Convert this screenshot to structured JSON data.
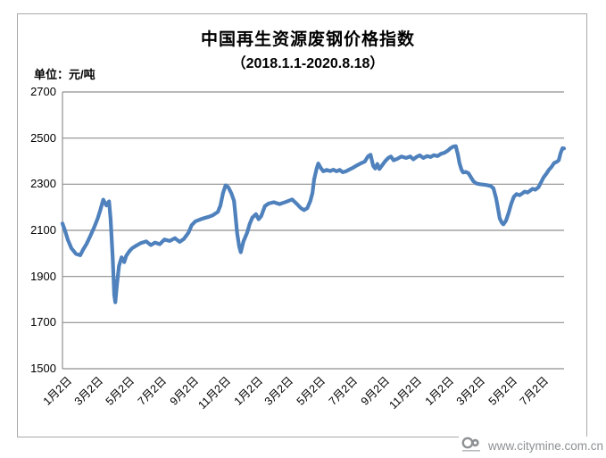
{
  "header": {
    "title": "中国再生资源废钢价格指数",
    "subtitle": "（2018.1.1-2020.8.18）",
    "unit_label": "单位：元/吨"
  },
  "watermark": {
    "url": "www.citymine.com.cn",
    "logo_text": "CITY MINE"
  },
  "chart_data": {
    "type": "line",
    "title": "中国再生资源废钢价格指数（2018.1.1-2020.8.18）",
    "xlabel": "",
    "ylabel": "元/吨",
    "ylim": [
      1500,
      2700
    ],
    "y_ticks": [
      1500,
      1700,
      1900,
      2100,
      2300,
      2500,
      2700
    ],
    "x_range_days": [
      0,
      959
    ],
    "x_ticks": [
      {
        "day": 0,
        "label": "1月2日"
      },
      {
        "day": 59,
        "label": "3月2日"
      },
      {
        "day": 120,
        "label": "5月2日"
      },
      {
        "day": 181,
        "label": "7月2日"
      },
      {
        "day": 243,
        "label": "9月2日"
      },
      {
        "day": 304,
        "label": "11月2日"
      },
      {
        "day": 365,
        "label": "1月2日"
      },
      {
        "day": 424,
        "label": "3月2日"
      },
      {
        "day": 485,
        "label": "5月2日"
      },
      {
        "day": 546,
        "label": "7月2日"
      },
      {
        "day": 608,
        "label": "9月2日"
      },
      {
        "day": 669,
        "label": "11月2日"
      },
      {
        "day": 730,
        "label": "1月2日"
      },
      {
        "day": 790,
        "label": "3月2日"
      },
      {
        "day": 851,
        "label": "5月2日"
      },
      {
        "day": 912,
        "label": "7月2日"
      }
    ],
    "grid": true,
    "legend": "none",
    "line_color": "#4F81BD",
    "grid_color": "#8f8f8f",
    "axis_color": "#8f8f8f",
    "series": [
      {
        "name": "废钢价格指数",
        "points": [
          [
            0,
            2130
          ],
          [
            5,
            2098
          ],
          [
            10,
            2060
          ],
          [
            17,
            2022
          ],
          [
            26,
            1998
          ],
          [
            34,
            1992
          ],
          [
            39,
            2015
          ],
          [
            46,
            2041
          ],
          [
            53,
            2075
          ],
          [
            60,
            2110
          ],
          [
            67,
            2150
          ],
          [
            72,
            2185
          ],
          [
            78,
            2233
          ],
          [
            84,
            2208
          ],
          [
            89,
            2226
          ],
          [
            92,
            2150
          ],
          [
            96,
            1980
          ],
          [
            99,
            1820
          ],
          [
            101,
            1788
          ],
          [
            104,
            1860
          ],
          [
            108,
            1945
          ],
          [
            113,
            1983
          ],
          [
            118,
            1962
          ],
          [
            122,
            1990
          ],
          [
            128,
            2010
          ],
          [
            133,
            2022
          ],
          [
            142,
            2035
          ],
          [
            150,
            2045
          ],
          [
            160,
            2052
          ],
          [
            169,
            2036
          ],
          [
            177,
            2047
          ],
          [
            186,
            2040
          ],
          [
            195,
            2060
          ],
          [
            205,
            2054
          ],
          [
            215,
            2066
          ],
          [
            224,
            2050
          ],
          [
            232,
            2063
          ],
          [
            241,
            2090
          ],
          [
            247,
            2122
          ],
          [
            254,
            2139
          ],
          [
            263,
            2147
          ],
          [
            271,
            2153
          ],
          [
            280,
            2159
          ],
          [
            288,
            2166
          ],
          [
            297,
            2180
          ],
          [
            302,
            2208
          ],
          [
            307,
            2262
          ],
          [
            312,
            2295
          ],
          [
            317,
            2287
          ],
          [
            323,
            2260
          ],
          [
            328,
            2228
          ],
          [
            331,
            2158
          ],
          [
            334,
            2088
          ],
          [
            338,
            2028
          ],
          [
            341,
            2005
          ],
          [
            346,
            2052
          ],
          [
            353,
            2090
          ],
          [
            358,
            2128
          ],
          [
            363,
            2155
          ],
          [
            370,
            2170
          ],
          [
            375,
            2148
          ],
          [
            380,
            2162
          ],
          [
            387,
            2205
          ],
          [
            394,
            2216
          ],
          [
            404,
            2222
          ],
          [
            415,
            2214
          ],
          [
            427,
            2223
          ],
          [
            439,
            2234
          ],
          [
            447,
            2217
          ],
          [
            456,
            2196
          ],
          [
            462,
            2188
          ],
          [
            468,
            2196
          ],
          [
            474,
            2228
          ],
          [
            478,
            2262
          ],
          [
            481,
            2320
          ],
          [
            486,
            2368
          ],
          [
            489,
            2390
          ],
          [
            494,
            2370
          ],
          [
            499,
            2356
          ],
          [
            505,
            2362
          ],
          [
            512,
            2357
          ],
          [
            518,
            2363
          ],
          [
            524,
            2356
          ],
          [
            530,
            2362
          ],
          [
            536,
            2352
          ],
          [
            542,
            2356
          ],
          [
            549,
            2364
          ],
          [
            556,
            2372
          ],
          [
            563,
            2382
          ],
          [
            570,
            2390
          ],
          [
            578,
            2398
          ],
          [
            584,
            2420
          ],
          [
            589,
            2428
          ],
          [
            594,
            2380
          ],
          [
            598,
            2368
          ],
          [
            602,
            2388
          ],
          [
            606,
            2366
          ],
          [
            611,
            2382
          ],
          [
            617,
            2400
          ],
          [
            623,
            2414
          ],
          [
            628,
            2420
          ],
          [
            633,
            2404
          ],
          [
            640,
            2410
          ],
          [
            648,
            2420
          ],
          [
            657,
            2414
          ],
          [
            665,
            2420
          ],
          [
            671,
            2408
          ],
          [
            677,
            2418
          ],
          [
            683,
            2425
          ],
          [
            690,
            2414
          ],
          [
            697,
            2422
          ],
          [
            704,
            2418
          ],
          [
            710,
            2426
          ],
          [
            717,
            2422
          ],
          [
            724,
            2432
          ],
          [
            730,
            2436
          ],
          [
            737,
            2446
          ],
          [
            742,
            2456
          ],
          [
            747,
            2463
          ],
          [
            752,
            2465
          ],
          [
            756,
            2430
          ],
          [
            759,
            2392
          ],
          [
            763,
            2363
          ],
          [
            766,
            2351
          ],
          [
            771,
            2353
          ],
          [
            776,
            2348
          ],
          [
            781,
            2330
          ],
          [
            786,
            2312
          ],
          [
            792,
            2303
          ],
          [
            798,
            2300
          ],
          [
            805,
            2298
          ],
          [
            812,
            2296
          ],
          [
            819,
            2292
          ],
          [
            824,
            2282
          ],
          [
            829,
            2240
          ],
          [
            833,
            2190
          ],
          [
            836,
            2152
          ],
          [
            840,
            2133
          ],
          [
            843,
            2126
          ],
          [
            848,
            2142
          ],
          [
            853,
            2176
          ],
          [
            858,
            2215
          ],
          [
            863,
            2245
          ],
          [
            868,
            2257
          ],
          [
            874,
            2252
          ],
          [
            879,
            2260
          ],
          [
            884,
            2268
          ],
          [
            889,
            2264
          ],
          [
            894,
            2272
          ],
          [
            899,
            2280
          ],
          [
            904,
            2276
          ],
          [
            910,
            2287
          ],
          [
            915,
            2308
          ],
          [
            920,
            2330
          ],
          [
            925,
            2345
          ],
          [
            930,
            2362
          ],
          [
            935,
            2375
          ],
          [
            940,
            2392
          ],
          [
            945,
            2397
          ],
          [
            949,
            2404
          ],
          [
            952,
            2432
          ],
          [
            956,
            2456
          ],
          [
            959,
            2455
          ]
        ]
      }
    ]
  }
}
